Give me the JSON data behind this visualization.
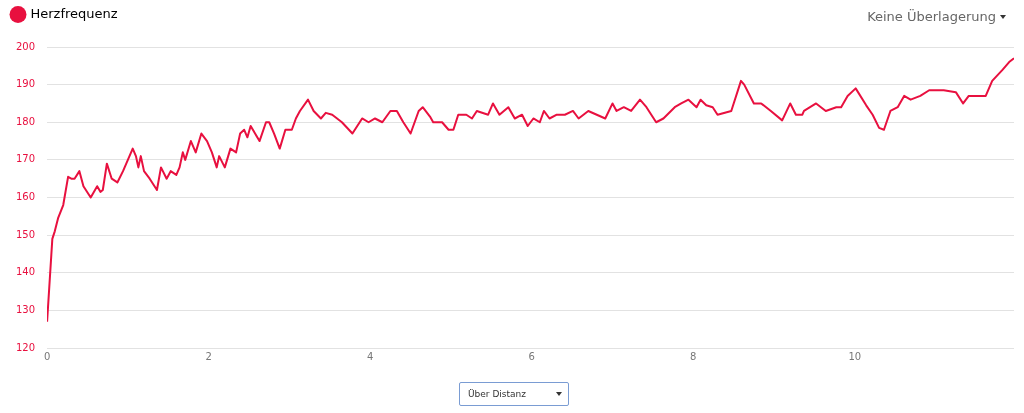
{
  "chart_data": {
    "type": "line",
    "annotations": [
      "Keine Überlagerung",
      "Über Distanz"
    ],
    "series": [
      {
        "name": "Herzfrequenz",
        "color": "#e8103f",
        "x": [
          0,
          0.065,
          0.095,
          0.136,
          0.2,
          0.26,
          0.3,
          0.34,
          0.4,
          0.45,
          0.54,
          0.62,
          0.66,
          0.69,
          0.74,
          0.8,
          0.87,
          0.94,
          1.0,
          1.06,
          1.1,
          1.13,
          1.16,
          1.2,
          1.27,
          1.36,
          1.41,
          1.48,
          1.53,
          1.6,
          1.64,
          1.68,
          1.71,
          1.78,
          1.84,
          1.91,
          1.98,
          2.04,
          2.1,
          2.13,
          2.2,
          2.27,
          2.34,
          2.39,
          2.44,
          2.48,
          2.52,
          2.63,
          2.71,
          2.75,
          2.81,
          2.88,
          2.95,
          3.03,
          3.08,
          3.13,
          3.23,
          3.3,
          3.39,
          3.45,
          3.53,
          3.59,
          3.65,
          3.78,
          3.9,
          3.98,
          4.06,
          4.15,
          4.25,
          4.33,
          4.41,
          4.5,
          4.6,
          4.65,
          4.74,
          4.78,
          4.89,
          4.97,
          5.03,
          5.09,
          5.19,
          5.26,
          5.32,
          5.46,
          5.52,
          5.6,
          5.71,
          5.79,
          5.88,
          5.95,
          6.02,
          6.1,
          6.15,
          6.22,
          6.31,
          6.41,
          6.51,
          6.58,
          6.64,
          6.7,
          6.91,
          7.0,
          7.05,
          7.14,
          7.23,
          7.34,
          7.42,
          7.54,
          7.63,
          7.77,
          7.85,
          7.94,
          8.04,
          8.09,
          8.16,
          8.24,
          8.3,
          8.47,
          8.59,
          8.63,
          8.75,
          8.84,
          8.96,
          9.1,
          9.2,
          9.27,
          9.35,
          9.37,
          9.52,
          9.64,
          9.77,
          9.83,
          9.91,
          10.01,
          10.14,
          10.22,
          10.3,
          10.36,
          10.44,
          10.53,
          10.61,
          10.69,
          10.81,
          10.92,
          11.1,
          11.25,
          11.34,
          11.41,
          11.56,
          11.62,
          11.7,
          11.83,
          11.91,
          11.97
        ],
        "values": [
          127,
          149,
          151,
          154.5,
          158,
          165.5,
          165,
          165,
          167,
          163,
          160,
          163,
          161.5,
          162,
          169,
          165,
          164,
          167,
          170,
          173,
          171,
          168,
          171,
          167,
          165,
          162,
          168,
          165,
          167,
          166,
          168,
          172,
          170,
          175,
          172,
          177,
          175,
          172,
          168,
          171,
          168,
          173,
          172,
          177,
          178,
          176,
          179,
          175,
          180,
          180,
          177,
          173,
          178,
          178,
          181,
          183,
          186,
          183,
          181,
          182.5,
          182,
          181,
          180,
          177,
          181,
          180,
          181,
          180,
          183,
          183,
          180,
          177,
          183,
          184,
          181.5,
          180,
          180,
          178,
          178,
          182,
          182,
          181,
          183,
          182,
          185,
          182,
          184,
          181,
          182,
          179,
          181,
          180,
          183,
          181,
          182,
          182,
          183,
          181,
          182,
          183,
          181,
          185,
          183,
          184,
          183,
          186,
          184,
          180,
          181,
          184,
          185,
          186,
          184,
          186,
          184.5,
          184,
          182,
          183,
          191,
          190,
          185,
          185,
          183,
          180.5,
          185,
          182,
          182,
          183,
          185,
          183,
          184,
          184,
          187,
          189,
          184.5,
          182,
          178.5,
          178,
          183,
          184,
          187,
          186,
          187,
          188.5,
          188.5,
          188,
          185,
          187,
          187,
          187,
          191,
          194,
          196,
          197
        ]
      }
    ],
    "xlim": [
      0,
      11.97
    ],
    "xticks": [
      0,
      2,
      4,
      6,
      8,
      10
    ],
    "ylim": [
      120,
      200
    ],
    "yticks": [
      120,
      130,
      140,
      150,
      160,
      170,
      180,
      190,
      200
    ],
    "grid": "y",
    "legend": "top left",
    "marker": "none",
    "line_style": "solid"
  }
}
